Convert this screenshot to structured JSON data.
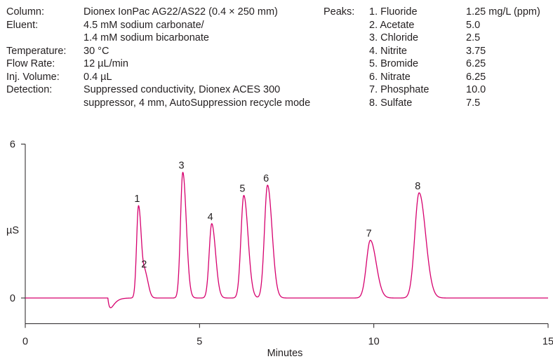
{
  "conditions": {
    "labels": [
      "Column:",
      "Eluent:",
      "",
      "Temperature:",
      "Flow Rate:",
      "Inj. Volume:",
      "Detection:",
      ""
    ],
    "values": [
      "Dionex IonPac AG22/AS22 (0.4 × 250 mm)",
      "4.5 mM sodium carbonate/",
      "1.4 mM sodium bicarbonate",
      "30 °C",
      "12 µL/min",
      "0.4 µL",
      "Suppressed conductivity, Dionex ACES 300",
      "suppressor, 4 mm, AutoSuppression recycle mode"
    ]
  },
  "peaks": {
    "label": "Peaks:",
    "names": [
      "1. Fluoride",
      "2. Acetate",
      "3. Chloride",
      "4. Nitrite",
      "5. Bromide",
      "6. Nitrate",
      "7. Phosphate",
      "8. Sulfate"
    ],
    "concentrations": [
      "1.25 mg/L (ppm)",
      "5.0",
      "2.5",
      "3.75",
      "6.25",
      "6.25",
      "10.0",
      "7.5"
    ]
  },
  "chart_data": {
    "type": "line",
    "xlabel": "Minutes",
    "ylabel": "µS",
    "xlim": [
      0,
      15
    ],
    "ylim": [
      -1.0,
      6
    ],
    "x_ticks": [
      "0",
      "5",
      "10",
      "15"
    ],
    "y_ticks": [
      "0",
      "6"
    ],
    "line_color": "#d6006e",
    "baseline": 0.0,
    "dip": {
      "rt": 2.45,
      "height": -0.38
    },
    "series": [
      {
        "peaks": [
          {
            "label": "1",
            "rt": 3.25,
            "height": 3.6
          },
          {
            "label": "2",
            "rt": 3.45,
            "height": 0.85
          },
          {
            "label": "3",
            "rt": 4.52,
            "height": 4.9
          },
          {
            "label": "4",
            "rt": 5.35,
            "height": 2.9
          },
          {
            "label": "5",
            "rt": 6.27,
            "height": 4.0
          },
          {
            "label": "6",
            "rt": 6.95,
            "height": 4.4
          },
          {
            "label": "7",
            "rt": 9.9,
            "height": 2.25
          },
          {
            "label": "8",
            "rt": 11.3,
            "height": 4.1
          }
        ]
      }
    ]
  }
}
